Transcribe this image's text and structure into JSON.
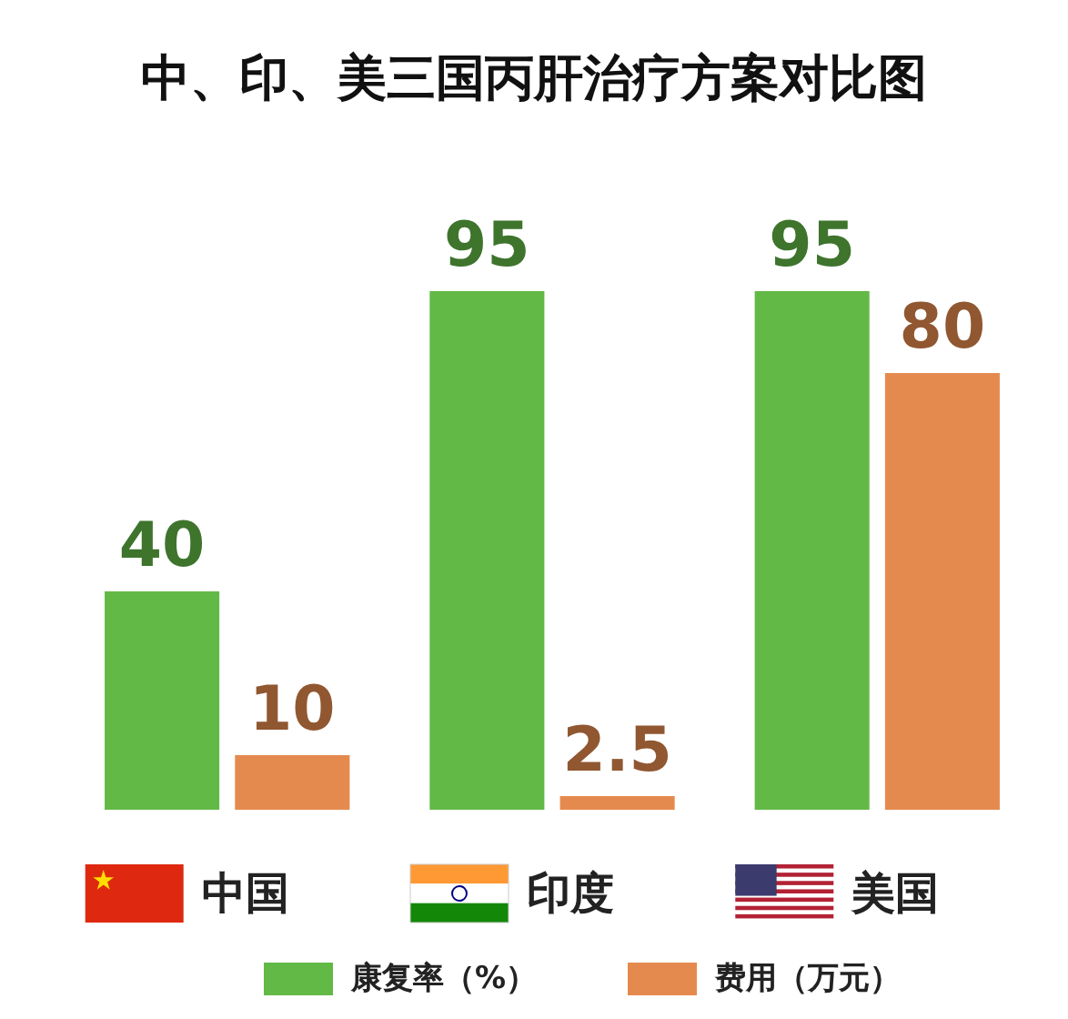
{
  "chart_data": {
    "type": "bar",
    "title": "中、印、美三国丙肝治疗方案对比图",
    "categories": [
      "中国",
      "印度",
      "美国"
    ],
    "series": [
      {
        "name": "康复率（%）",
        "color": "#62b946",
        "values": [
          40,
          95,
          95
        ]
      },
      {
        "name": "费用（万元）",
        "color": "#e58a4e",
        "values": [
          10,
          2.5,
          80
        ]
      }
    ],
    "data_labels": true,
    "legend": "bottom"
  }
}
